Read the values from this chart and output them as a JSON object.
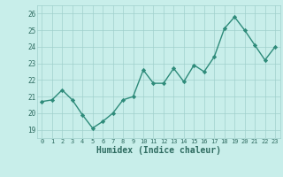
{
  "x": [
    0,
    1,
    2,
    3,
    4,
    5,
    6,
    7,
    8,
    9,
    10,
    11,
    12,
    13,
    14,
    15,
    16,
    17,
    18,
    19,
    20,
    21,
    22,
    23
  ],
  "y": [
    20.7,
    20.8,
    21.4,
    20.8,
    19.9,
    19.1,
    19.5,
    20.0,
    20.8,
    21.0,
    22.6,
    21.8,
    21.8,
    22.7,
    21.9,
    22.9,
    22.5,
    23.4,
    25.1,
    25.8,
    25.0,
    24.1,
    23.2,
    24.0
  ],
  "line_color": "#2e8b7a",
  "marker_color": "#2e8b7a",
  "bg_color": "#c8eeea",
  "grid_color": "#a0d0cc",
  "xlabel": "Humidex (Indice chaleur)",
  "ylim": [
    18.5,
    26.5
  ],
  "xlim": [
    -0.5,
    23.5
  ],
  "yticks": [
    19,
    20,
    21,
    22,
    23,
    24,
    25,
    26
  ],
  "xticks": [
    0,
    1,
    2,
    3,
    4,
    5,
    6,
    7,
    8,
    9,
    10,
    11,
    12,
    13,
    14,
    15,
    16,
    17,
    18,
    19,
    20,
    21,
    22,
    23
  ],
  "axis_label_color": "#2e6b60",
  "tick_color": "#2e6b60",
  "tick_fontsize": 5.0,
  "xlabel_fontsize": 7.0
}
